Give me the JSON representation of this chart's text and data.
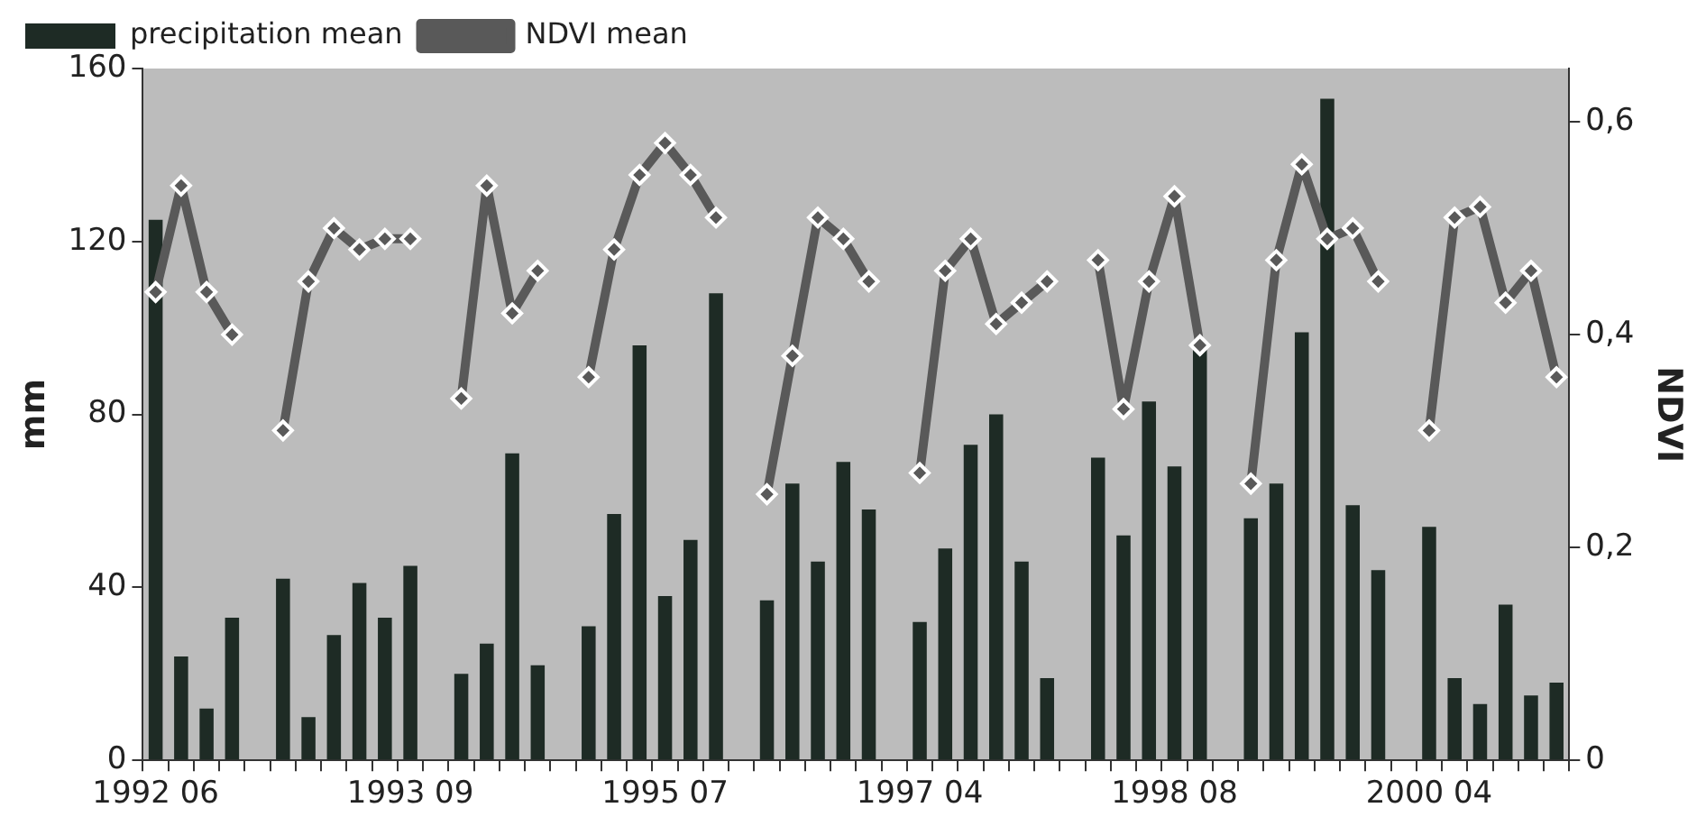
{
  "chart_data": {
    "type": "bar",
    "ylabel": "mm",
    "y2label": "NDVI",
    "categories": [
      "1992 06",
      null,
      null,
      null,
      null,
      null,
      null,
      null,
      null,
      null,
      "1993 09",
      null,
      null,
      null,
      null,
      null,
      null,
      null,
      null,
      null,
      "1995 07",
      null,
      null,
      null,
      null,
      null,
      null,
      null,
      null,
      null,
      "1997 04",
      null,
      null,
      null,
      null,
      null,
      null,
      null,
      null,
      null,
      "1998 08",
      null,
      null,
      null,
      null,
      null,
      null,
      null,
      null,
      null,
      "2000 04",
      null,
      null,
      null,
      null,
      null
    ],
    "series": [
      {
        "name": "precipitation mean",
        "color": "#1e2b25",
        "values": [
          125,
          24,
          12,
          33,
          null,
          42,
          10,
          29,
          41,
          33,
          45,
          null,
          20,
          27,
          71,
          22,
          null,
          31,
          57,
          96,
          38,
          51,
          108,
          null,
          37,
          64,
          46,
          69,
          58,
          null,
          32,
          49,
          73,
          80,
          46,
          19,
          null,
          70,
          52,
          83,
          68,
          95,
          null,
          56,
          64,
          99,
          153,
          59,
          44,
          null,
          54,
          19,
          13,
          36,
          15,
          18
        ]
      },
      {
        "name": "NDVI mean",
        "type": "line",
        "axis": "y2",
        "color": "#595959",
        "values": [
          0.44,
          0.54,
          0.44,
          0.4,
          null,
          0.31,
          0.45,
          0.5,
          0.48,
          0.49,
          0.49,
          null,
          0.34,
          0.54,
          0.42,
          0.46,
          null,
          0.36,
          0.48,
          0.55,
          0.58,
          0.55,
          0.51,
          null,
          0.25,
          0.38,
          0.51,
          0.49,
          0.45,
          null,
          0.27,
          0.46,
          0.49,
          0.41,
          0.43,
          0.45,
          null,
          0.47,
          0.33,
          0.45,
          0.53,
          0.39,
          null,
          0.26,
          0.47,
          0.56,
          0.49,
          0.5,
          0.45,
          null,
          0.31,
          0.51,
          0.52,
          0.43,
          0.46,
          0.36
        ]
      }
    ],
    "ylim": [
      0,
      160
    ],
    "yticks": [
      0,
      40,
      80,
      120,
      160
    ],
    "y2lim": [
      0,
      0.65
    ],
    "y2ticks": [
      0,
      {
        "value": 0.2,
        "label": "0,2"
      },
      {
        "value": 0.4,
        "label": "0,4"
      },
      {
        "value": 0.6,
        "label": "0,6"
      }
    ],
    "grid": false,
    "legend": "top left",
    "marker": "diamond",
    "line_style": "solid"
  }
}
